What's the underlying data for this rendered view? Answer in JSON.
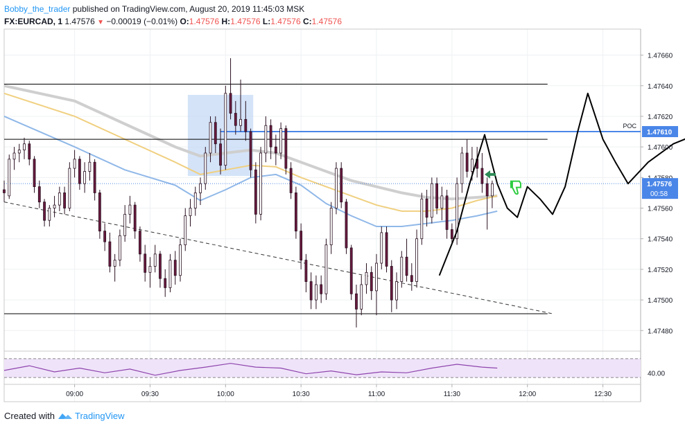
{
  "header": {
    "author": "Bobby_the_trader",
    "published": "published on TradingView.com, August 20, 2019 11:45:03 MSK",
    "symbol": "FX:EURCAD, 1",
    "last": "1.47576",
    "change": "−0.00019 (−0.01%)",
    "o_label": "O:",
    "o": "1.47576",
    "h_label": "H:",
    "h": "1.47576",
    "l_label": "L:",
    "l": "1.47576",
    "c_label": "C:",
    "c": "1.47576"
  },
  "footer": {
    "created_with": "Created with",
    "brand": "TradingView"
  },
  "colors": {
    "up": "#ffffff",
    "down": "#6a1b3f",
    "candle_outline": "#2a1020",
    "ema_blue": "#90b8e8",
    "ema_yellow": "#f0d080",
    "ema_grey": "#cfcfcf",
    "accent": "#2196f3",
    "rsi_bg": "#efe3f9",
    "rsi_line": "#8e44ad"
  },
  "chart_data": {
    "type": "candlestick",
    "symbol": "FX:EURCAD",
    "interval": "1",
    "x_ticks": [
      "09:00",
      "09:30",
      "10:00",
      "10:30",
      "11:00",
      "11:30",
      "12:00",
      "12:30"
    ],
    "x_tick_minutes": [
      540,
      570,
      600,
      630,
      660,
      690,
      720,
      750
    ],
    "xlim_minutes": [
      512,
      765
    ],
    "y_ticks": [
      "1.47480",
      "1.47500",
      "1.47520",
      "1.47540",
      "1.47560",
      "1.47580",
      "1.47600",
      "1.47620",
      "1.47640",
      "1.47660"
    ],
    "y_tick_values": [
      1.4748,
      1.475,
      1.4752,
      1.4754,
      1.4756,
      1.4758,
      1.476,
      1.4762,
      1.4764,
      1.4766
    ],
    "ylim": [
      1.47467,
      1.47677
    ],
    "candles": [
      {
        "t": 512,
        "o": 1.47572,
        "h": 1.47578,
        "l": 1.47564,
        "c": 1.4757
      },
      {
        "t": 514,
        "o": 1.47568,
        "h": 1.47595,
        "l": 1.47566,
        "c": 1.47592
      },
      {
        "t": 516,
        "o": 1.47592,
        "h": 1.476,
        "l": 1.47585,
        "c": 1.47596
      },
      {
        "t": 518,
        "o": 1.47596,
        "h": 1.47602,
        "l": 1.4759,
        "c": 1.47598
      },
      {
        "t": 520,
        "o": 1.47598,
        "h": 1.47606,
        "l": 1.47592,
        "c": 1.47602
      },
      {
        "t": 522,
        "o": 1.47602,
        "h": 1.47604,
        "l": 1.47588,
        "c": 1.47592
      },
      {
        "t": 524,
        "o": 1.47592,
        "h": 1.47594,
        "l": 1.4757,
        "c": 1.47574
      },
      {
        "t": 526,
        "o": 1.47574,
        "h": 1.47578,
        "l": 1.4756,
        "c": 1.47564
      },
      {
        "t": 528,
        "o": 1.47564,
        "h": 1.47566,
        "l": 1.47548,
        "c": 1.47552
      },
      {
        "t": 530,
        "o": 1.47552,
        "h": 1.47562,
        "l": 1.47548,
        "c": 1.4756
      },
      {
        "t": 532,
        "o": 1.4756,
        "h": 1.47568,
        "l": 1.47554,
        "c": 1.47562
      },
      {
        "t": 534,
        "o": 1.47562,
        "h": 1.47574,
        "l": 1.47558,
        "c": 1.4757
      },
      {
        "t": 536,
        "o": 1.4757,
        "h": 1.47574,
        "l": 1.47556,
        "c": 1.4756
      },
      {
        "t": 538,
        "o": 1.4756,
        "h": 1.4759,
        "l": 1.47558,
        "c": 1.47586
      },
      {
        "t": 540,
        "o": 1.47586,
        "h": 1.47598,
        "l": 1.4758,
        "c": 1.47592
      },
      {
        "t": 542,
        "o": 1.47592,
        "h": 1.47594,
        "l": 1.47572,
        "c": 1.47576
      },
      {
        "t": 544,
        "o": 1.47576,
        "h": 1.4759,
        "l": 1.4757,
        "c": 1.47584
      },
      {
        "t": 546,
        "o": 1.47584,
        "h": 1.47596,
        "l": 1.47578,
        "c": 1.4759
      },
      {
        "t": 548,
        "o": 1.4759,
        "h": 1.47592,
        "l": 1.47565,
        "c": 1.4757
      },
      {
        "t": 550,
        "o": 1.4757,
        "h": 1.47572,
        "l": 1.4754,
        "c": 1.47545
      },
      {
        "t": 552,
        "o": 1.47545,
        "h": 1.4755,
        "l": 1.47532,
        "c": 1.47538
      },
      {
        "t": 554,
        "o": 1.47538,
        "h": 1.47544,
        "l": 1.47518,
        "c": 1.47522
      },
      {
        "t": 556,
        "o": 1.47522,
        "h": 1.4753,
        "l": 1.47512,
        "c": 1.47526
      },
      {
        "t": 558,
        "o": 1.47526,
        "h": 1.47546,
        "l": 1.47522,
        "c": 1.47542
      },
      {
        "t": 560,
        "o": 1.47542,
        "h": 1.47562,
        "l": 1.47538,
        "c": 1.47556
      },
      {
        "t": 562,
        "o": 1.47556,
        "h": 1.47568,
        "l": 1.4755,
        "c": 1.47562
      },
      {
        "t": 564,
        "o": 1.47562,
        "h": 1.47564,
        "l": 1.4754,
        "c": 1.47545
      },
      {
        "t": 566,
        "o": 1.47545,
        "h": 1.47548,
        "l": 1.47525,
        "c": 1.4753
      },
      {
        "t": 568,
        "o": 1.4753,
        "h": 1.47536,
        "l": 1.47512,
        "c": 1.47518
      },
      {
        "t": 570,
        "o": 1.47518,
        "h": 1.47528,
        "l": 1.47508,
        "c": 1.47522
      },
      {
        "t": 572,
        "o": 1.47522,
        "h": 1.47536,
        "l": 1.47518,
        "c": 1.4753
      },
      {
        "t": 574,
        "o": 1.4753,
        "h": 1.47532,
        "l": 1.47508,
        "c": 1.47514
      },
      {
        "t": 576,
        "o": 1.47514,
        "h": 1.4752,
        "l": 1.47502,
        "c": 1.47508
      },
      {
        "t": 578,
        "o": 1.47508,
        "h": 1.4753,
        "l": 1.47505,
        "c": 1.47526
      },
      {
        "t": 580,
        "o": 1.47526,
        "h": 1.47532,
        "l": 1.4751,
        "c": 1.47516
      },
      {
        "t": 582,
        "o": 1.47516,
        "h": 1.4754,
        "l": 1.47512,
        "c": 1.47536
      },
      {
        "t": 584,
        "o": 1.47536,
        "h": 1.4756,
        "l": 1.47532,
        "c": 1.47555
      },
      {
        "t": 586,
        "o": 1.47555,
        "h": 1.47566,
        "l": 1.47548,
        "c": 1.4756
      },
      {
        "t": 588,
        "o": 1.4756,
        "h": 1.47574,
        "l": 1.47555,
        "c": 1.4757
      },
      {
        "t": 590,
        "o": 1.4757,
        "h": 1.4758,
        "l": 1.47562,
        "c": 1.47576
      },
      {
        "t": 592,
        "o": 1.47576,
        "h": 1.476,
        "l": 1.47572,
        "c": 1.47596
      },
      {
        "t": 594,
        "o": 1.47596,
        "h": 1.4762,
        "l": 1.4759,
        "c": 1.47616
      },
      {
        "t": 596,
        "o": 1.47616,
        "h": 1.4762,
        "l": 1.47596,
        "c": 1.47602
      },
      {
        "t": 598,
        "o": 1.47602,
        "h": 1.47612,
        "l": 1.47582,
        "c": 1.47588
      },
      {
        "t": 600,
        "o": 1.47588,
        "h": 1.4764,
        "l": 1.47585,
        "c": 1.47635
      },
      {
        "t": 602,
        "o": 1.47635,
        "h": 1.47658,
        "l": 1.47618,
        "c": 1.47622
      },
      {
        "t": 604,
        "o": 1.47622,
        "h": 1.4763,
        "l": 1.47608,
        "c": 1.47614
      },
      {
        "t": 606,
        "o": 1.47614,
        "h": 1.47644,
        "l": 1.4761,
        "c": 1.47618
      },
      {
        "t": 608,
        "o": 1.47618,
        "h": 1.4763,
        "l": 1.47604,
        "c": 1.4761
      },
      {
        "t": 610,
        "o": 1.4761,
        "h": 1.47612,
        "l": 1.4758,
        "c": 1.47585
      },
      {
        "t": 612,
        "o": 1.47585,
        "h": 1.4759,
        "l": 1.4755,
        "c": 1.47556
      },
      {
        "t": 614,
        "o": 1.47556,
        "h": 1.476,
        "l": 1.47552,
        "c": 1.47596
      },
      {
        "t": 616,
        "o": 1.47596,
        "h": 1.4762,
        "l": 1.4759,
        "c": 1.47614
      },
      {
        "t": 618,
        "o": 1.47614,
        "h": 1.47618,
        "l": 1.47592,
        "c": 1.476
      },
      {
        "t": 620,
        "o": 1.476,
        "h": 1.47608,
        "l": 1.47588,
        "c": 1.47596
      },
      {
        "t": 622,
        "o": 1.47596,
        "h": 1.47616,
        "l": 1.47592,
        "c": 1.47612
      },
      {
        "t": 624,
        "o": 1.47612,
        "h": 1.47614,
        "l": 1.47582,
        "c": 1.47586
      },
      {
        "t": 626,
        "o": 1.47586,
        "h": 1.4759,
        "l": 1.47566,
        "c": 1.4757
      },
      {
        "t": 628,
        "o": 1.4757,
        "h": 1.47574,
        "l": 1.4754,
        "c": 1.47545
      },
      {
        "t": 630,
        "o": 1.47545,
        "h": 1.4755,
        "l": 1.4752,
        "c": 1.47526
      },
      {
        "t": 632,
        "o": 1.47526,
        "h": 1.4753,
        "l": 1.47505,
        "c": 1.47512
      },
      {
        "t": 634,
        "o": 1.47512,
        "h": 1.47518,
        "l": 1.47494,
        "c": 1.475
      },
      {
        "t": 636,
        "o": 1.475,
        "h": 1.47516,
        "l": 1.47494,
        "c": 1.4751
      },
      {
        "t": 638,
        "o": 1.4751,
        "h": 1.47516,
        "l": 1.47498,
        "c": 1.47504
      },
      {
        "t": 640,
        "o": 1.47504,
        "h": 1.4754,
        "l": 1.475,
        "c": 1.47536
      },
      {
        "t": 642,
        "o": 1.47536,
        "h": 1.47564,
        "l": 1.4753,
        "c": 1.4756
      },
      {
        "t": 644,
        "o": 1.4756,
        "h": 1.4759,
        "l": 1.47556,
        "c": 1.47586
      },
      {
        "t": 646,
        "o": 1.47586,
        "h": 1.4759,
        "l": 1.4756,
        "c": 1.47564
      },
      {
        "t": 648,
        "o": 1.47564,
        "h": 1.47566,
        "l": 1.4753,
        "c": 1.47534
      },
      {
        "t": 650,
        "o": 1.47534,
        "h": 1.47536,
        "l": 1.475,
        "c": 1.47504
      },
      {
        "t": 652,
        "o": 1.47504,
        "h": 1.4751,
        "l": 1.47482,
        "c": 1.47494
      },
      {
        "t": 654,
        "o": 1.47494,
        "h": 1.47516,
        "l": 1.4749,
        "c": 1.4751
      },
      {
        "t": 656,
        "o": 1.4751,
        "h": 1.47524,
        "l": 1.47504,
        "c": 1.47518
      },
      {
        "t": 658,
        "o": 1.47518,
        "h": 1.47522,
        "l": 1.475,
        "c": 1.47506
      },
      {
        "t": 660,
        "o": 1.47506,
        "h": 1.4753,
        "l": 1.4749,
        "c": 1.47524
      },
      {
        "t": 662,
        "o": 1.47524,
        "h": 1.47548,
        "l": 1.4752,
        "c": 1.47544
      },
      {
        "t": 664,
        "o": 1.47544,
        "h": 1.47548,
        "l": 1.47518,
        "c": 1.47522
      },
      {
        "t": 666,
        "o": 1.47522,
        "h": 1.47526,
        "l": 1.47492,
        "c": 1.475
      },
      {
        "t": 668,
        "o": 1.475,
        "h": 1.47518,
        "l": 1.47494,
        "c": 1.47512
      },
      {
        "t": 670,
        "o": 1.47512,
        "h": 1.47532,
        "l": 1.47508,
        "c": 1.47528
      },
      {
        "t": 672,
        "o": 1.47528,
        "h": 1.4754,
        "l": 1.47512,
        "c": 1.47516
      },
      {
        "t": 674,
        "o": 1.47516,
        "h": 1.47524,
        "l": 1.47506,
        "c": 1.47512
      },
      {
        "t": 676,
        "o": 1.47512,
        "h": 1.47546,
        "l": 1.47508,
        "c": 1.4754
      },
      {
        "t": 678,
        "o": 1.4754,
        "h": 1.4757,
        "l": 1.47536,
        "c": 1.47566
      },
      {
        "t": 680,
        "o": 1.47566,
        "h": 1.47572,
        "l": 1.47548,
        "c": 1.47554
      },
      {
        "t": 682,
        "o": 1.47554,
        "h": 1.4758,
        "l": 1.4755,
        "c": 1.47576
      },
      {
        "t": 684,
        "o": 1.47576,
        "h": 1.4758,
        "l": 1.47556,
        "c": 1.4756
      },
      {
        "t": 686,
        "o": 1.4756,
        "h": 1.47574,
        "l": 1.47552,
        "c": 1.47568
      },
      {
        "t": 688,
        "o": 1.47568,
        "h": 1.47572,
        "l": 1.4754,
        "c": 1.47546
      },
      {
        "t": 690,
        "o": 1.47546,
        "h": 1.4755,
        "l": 1.47536,
        "c": 1.4754
      },
      {
        "t": 692,
        "o": 1.4754,
        "h": 1.4758,
        "l": 1.47536,
        "c": 1.47576
      },
      {
        "t": 694,
        "o": 1.47576,
        "h": 1.476,
        "l": 1.4757,
        "c": 1.47596
      },
      {
        "t": 696,
        "o": 1.47596,
        "h": 1.47605,
        "l": 1.4758,
        "c": 1.47584
      },
      {
        "t": 698,
        "o": 1.47584,
        "h": 1.476,
        "l": 1.47578,
        "c": 1.47592
      },
      {
        "t": 700,
        "o": 1.47592,
        "h": 1.476,
        "l": 1.4758,
        "c": 1.47586
      },
      {
        "t": 702,
        "o": 1.47586,
        "h": 1.47596,
        "l": 1.4757,
        "c": 1.47576
      },
      {
        "t": 704,
        "o": 1.47576,
        "h": 1.4758,
        "l": 1.47546,
        "c": 1.47568
      },
      {
        "t": 706,
        "o": 1.47568,
        "h": 1.47578,
        "l": 1.4756,
        "c": 1.47576
      }
    ],
    "ema_blue": [
      [
        512,
        1.4762
      ],
      [
        540,
        1.476
      ],
      [
        560,
        1.47585
      ],
      [
        580,
        1.47575
      ],
      [
        590,
        1.47565
      ],
      [
        600,
        1.47572
      ],
      [
        610,
        1.4758
      ],
      [
        620,
        1.47582
      ],
      [
        630,
        1.47575
      ],
      [
        640,
        1.47563
      ],
      [
        650,
        1.47555
      ],
      [
        660,
        1.47548
      ],
      [
        670,
        1.47548
      ],
      [
        680,
        1.4755
      ],
      [
        690,
        1.47552
      ],
      [
        700,
        1.47555
      ],
      [
        708,
        1.47558
      ]
    ],
    "ema_yellow": [
      [
        512,
        1.47635
      ],
      [
        540,
        1.4762
      ],
      [
        560,
        1.47605
      ],
      [
        580,
        1.4759
      ],
      [
        590,
        1.47582
      ],
      [
        600,
        1.47585
      ],
      [
        610,
        1.47588
      ],
      [
        620,
        1.47587
      ],
      [
        630,
        1.4758
      ],
      [
        640,
        1.47574
      ],
      [
        650,
        1.47568
      ],
      [
        660,
        1.47562
      ],
      [
        670,
        1.47558
      ],
      [
        680,
        1.47558
      ],
      [
        690,
        1.4756
      ],
      [
        700,
        1.47565
      ],
      [
        708,
        1.47568
      ]
    ],
    "ema_grey": [
      [
        512,
        1.4764
      ],
      [
        540,
        1.4763
      ],
      [
        560,
        1.47615
      ],
      [
        580,
        1.476
      ],
      [
        590,
        1.47594
      ],
      [
        600,
        1.47596
      ],
      [
        610,
        1.47598
      ],
      [
        620,
        1.47596
      ],
      [
        630,
        1.4759
      ],
      [
        640,
        1.47584
      ],
      [
        650,
        1.47578
      ],
      [
        660,
        1.47574
      ],
      [
        670,
        1.4757
      ],
      [
        680,
        1.47567
      ],
      [
        690,
        1.47566
      ],
      [
        700,
        1.47567
      ],
      [
        708,
        1.47568
      ]
    ],
    "lines": {
      "resistance": 1.47641,
      "support": 1.47491,
      "range_mid": 1.47605,
      "poc": 1.4761,
      "poc_label": "POC",
      "poc_price": "1.47610"
    },
    "trendline": {
      "x": [
        512,
        730
      ],
      "y": [
        1.47564,
        1.47491
      ]
    },
    "zone": {
      "x": [
        585,
        611
      ],
      "y": [
        1.47581,
        1.47634
      ]
    },
    "projection": [
      [
        685,
        1.47516
      ],
      [
        692,
        1.47545
      ],
      [
        697,
        1.47576
      ],
      [
        703,
        1.47608
      ],
      [
        708,
        1.47576
      ],
      [
        712,
        1.4756
      ],
      [
        716,
        1.47554
      ],
      [
        720,
        1.47574
      ],
      [
        725,
        1.47566
      ],
      [
        730,
        1.47556
      ],
      [
        735,
        1.47574
      ],
      [
        740,
        1.4761
      ],
      [
        744,
        1.47635
      ],
      [
        750,
        1.47605
      ],
      [
        755,
        1.4759
      ],
      [
        760,
        1.47576
      ],
      [
        768,
        1.4759
      ],
      [
        778,
        1.47602
      ],
      [
        790,
        1.4761
      ],
      [
        805,
        1.47625
      ],
      [
        815,
        1.4764
      ]
    ],
    "last_price": "1.47576",
    "last_value": 1.47576,
    "countdown": "00:58",
    "rsi": {
      "level_label": "40.00",
      "level": 40,
      "band": [
        30,
        70
      ],
      "values": [
        [
          512,
          45
        ],
        [
          522,
          55
        ],
        [
          532,
          42
        ],
        [
          542,
          50
        ],
        [
          552,
          40
        ],
        [
          562,
          48
        ],
        [
          572,
          35
        ],
        [
          582,
          45
        ],
        [
          592,
          52
        ],
        [
          602,
          60
        ],
        [
          612,
          52
        ],
        [
          622,
          50
        ],
        [
          632,
          38
        ],
        [
          642,
          44
        ],
        [
          652,
          36
        ],
        [
          662,
          42
        ],
        [
          672,
          40
        ],
        [
          682,
          50
        ],
        [
          692,
          58
        ],
        [
          702,
          52
        ],
        [
          708,
          50
        ]
      ]
    }
  }
}
